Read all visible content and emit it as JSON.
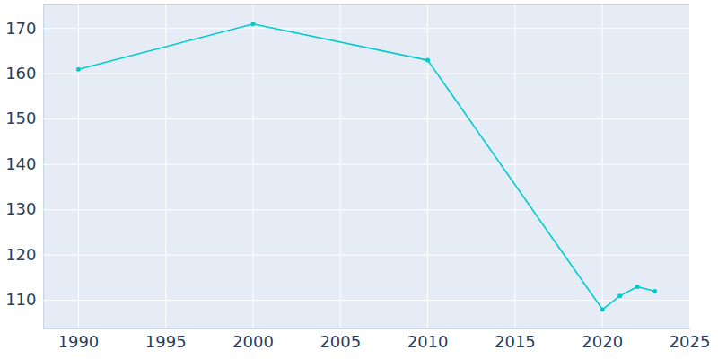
{
  "chart_data": {
    "type": "line",
    "x": [
      1990,
      2000,
      2010,
      2020,
      2021,
      2022,
      2023
    ],
    "values": [
      161,
      171,
      163,
      108,
      111,
      113,
      112
    ],
    "color": "#00cccc",
    "marker": "circle",
    "xlim": [
      1988,
      2025
    ],
    "xticks": [
      1990,
      1995,
      2000,
      2005,
      2010,
      2015,
      2020,
      2025
    ],
    "ylim": [
      103.7,
      175.2
    ],
    "yticks": [
      110,
      120,
      130,
      140,
      150,
      160,
      170
    ],
    "grid": true
  }
}
